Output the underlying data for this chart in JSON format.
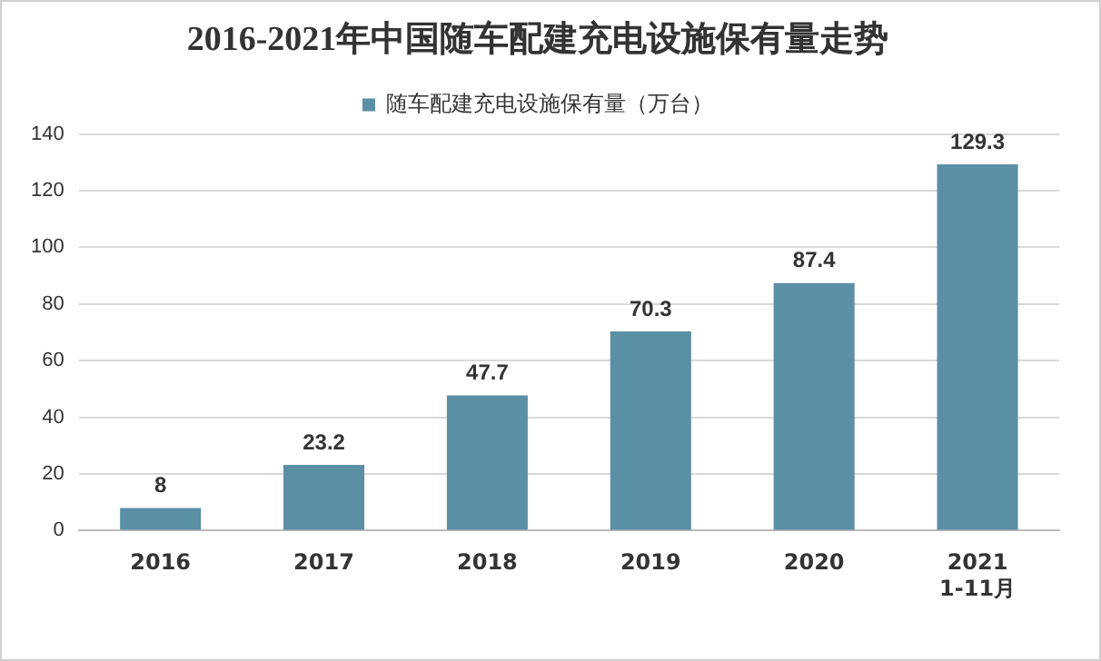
{
  "chart_data": {
    "type": "bar",
    "title": "2016-2021年中国随车配建充电设施保有量走势",
    "categories": [
      "2016",
      "2017",
      "2018",
      "2019",
      "2020",
      "2021\n1-11月"
    ],
    "series": [
      {
        "name": "随车配建充电设施保有量（万台）",
        "color": "#5b8fa6",
        "values": [
          8,
          23.2,
          47.7,
          70.3,
          87.4,
          129.3
        ]
      }
    ],
    "ylim": [
      0,
      140
    ],
    "yticks": [
      0,
      20,
      40,
      60,
      80,
      100,
      120,
      140
    ],
    "grid": "y",
    "legend": "top",
    "data_labels": true
  }
}
